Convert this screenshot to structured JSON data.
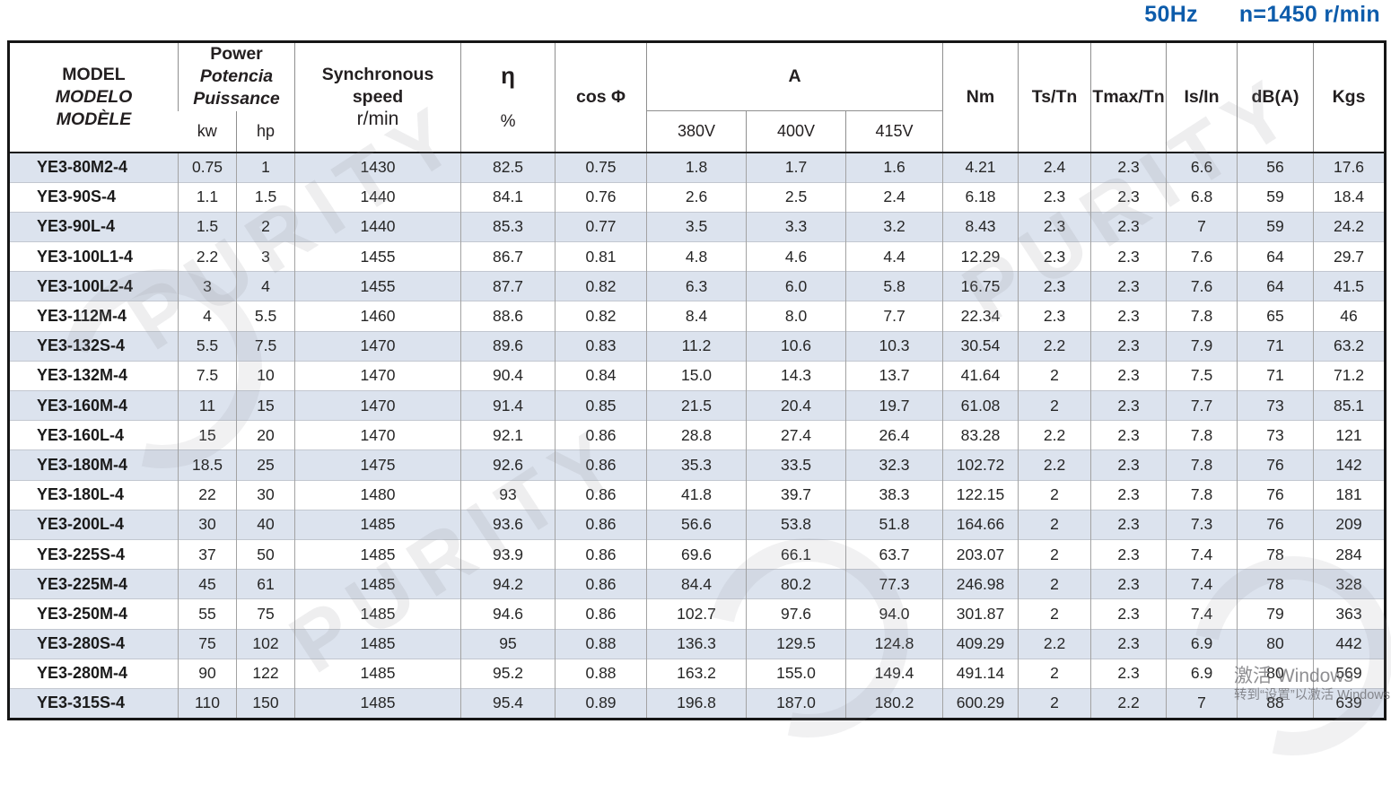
{
  "page_header": {
    "frequency": "50Hz",
    "speed_spec": "n=1450 r/min"
  },
  "table": {
    "header": {
      "model_lines": [
        "MODEL",
        "MODELO",
        "MODÈLE"
      ],
      "power_lines": [
        "Power",
        "Potencia",
        "Puissance"
      ],
      "power_sub": [
        "kw",
        "hp"
      ],
      "speed_lines": [
        "Synchronous",
        "speed",
        "r/min"
      ],
      "eta_symbol": "η",
      "eta_unit": "%",
      "cos_label": "cos Φ",
      "current_label": "A",
      "current_sub": [
        "380V",
        "400V",
        "415V"
      ],
      "simple": [
        "Nm",
        "Ts/Tn",
        "Tmax/Tn",
        "Is/In",
        "dB(A)",
        "Kgs"
      ]
    },
    "rows": [
      {
        "model": "YE3-80M2-4",
        "values": [
          "0.75",
          "1",
          "1430",
          "82.5",
          "0.75",
          "1.8",
          "1.7",
          "1.6",
          "4.21",
          "2.4",
          "2.3",
          "6.6",
          "56",
          "17.6"
        ]
      },
      {
        "model": "YE3-90S-4",
        "values": [
          "1.1",
          "1.5",
          "1440",
          "84.1",
          "0.76",
          "2.6",
          "2.5",
          "2.4",
          "6.18",
          "2.3",
          "2.3",
          "6.8",
          "59",
          "18.4"
        ]
      },
      {
        "model": "YE3-90L-4",
        "values": [
          "1.5",
          "2",
          "1440",
          "85.3",
          "0.77",
          "3.5",
          "3.3",
          "3.2",
          "8.43",
          "2.3",
          "2.3",
          "7",
          "59",
          "24.2"
        ]
      },
      {
        "model": "YE3-100L1-4",
        "values": [
          "2.2",
          "3",
          "1455",
          "86.7",
          "0.81",
          "4.8",
          "4.6",
          "4.4",
          "12.29",
          "2.3",
          "2.3",
          "7.6",
          "64",
          "29.7"
        ]
      },
      {
        "model": "YE3-100L2-4",
        "values": [
          "3",
          "4",
          "1455",
          "87.7",
          "0.82",
          "6.3",
          "6.0",
          "5.8",
          "16.75",
          "2.3",
          "2.3",
          "7.6",
          "64",
          "41.5"
        ]
      },
      {
        "model": "YE3-112M-4",
        "values": [
          "4",
          "5.5",
          "1460",
          "88.6",
          "0.82",
          "8.4",
          "8.0",
          "7.7",
          "22.34",
          "2.3",
          "2.3",
          "7.8",
          "65",
          "46"
        ]
      },
      {
        "model": "YE3-132S-4",
        "values": [
          "5.5",
          "7.5",
          "1470",
          "89.6",
          "0.83",
          "11.2",
          "10.6",
          "10.3",
          "30.54",
          "2.2",
          "2.3",
          "7.9",
          "71",
          "63.2"
        ]
      },
      {
        "model": "YE3-132M-4",
        "values": [
          "7.5",
          "10",
          "1470",
          "90.4",
          "0.84",
          "15.0",
          "14.3",
          "13.7",
          "41.64",
          "2",
          "2.3",
          "7.5",
          "71",
          "71.2"
        ]
      },
      {
        "model": "YE3-160M-4",
        "values": [
          "11",
          "15",
          "1470",
          "91.4",
          "0.85",
          "21.5",
          "20.4",
          "19.7",
          "61.08",
          "2",
          "2.3",
          "7.7",
          "73",
          "85.1"
        ]
      },
      {
        "model": "YE3-160L-4",
        "values": [
          "15",
          "20",
          "1470",
          "92.1",
          "0.86",
          "28.8",
          "27.4",
          "26.4",
          "83.28",
          "2.2",
          "2.3",
          "7.8",
          "73",
          "121"
        ]
      },
      {
        "model": "YE3-180M-4",
        "values": [
          "18.5",
          "25",
          "1475",
          "92.6",
          "0.86",
          "35.3",
          "33.5",
          "32.3",
          "102.72",
          "2.2",
          "2.3",
          "7.8",
          "76",
          "142"
        ]
      },
      {
        "model": "YE3-180L-4",
        "values": [
          "22",
          "30",
          "1480",
          "93",
          "0.86",
          "41.8",
          "39.7",
          "38.3",
          "122.15",
          "2",
          "2.3",
          "7.8",
          "76",
          "181"
        ]
      },
      {
        "model": "YE3-200L-4",
        "values": [
          "30",
          "40",
          "1485",
          "93.6",
          "0.86",
          "56.6",
          "53.8",
          "51.8",
          "164.66",
          "2",
          "2.3",
          "7.3",
          "76",
          "209"
        ]
      },
      {
        "model": "YE3-225S-4",
        "values": [
          "37",
          "50",
          "1485",
          "93.9",
          "0.86",
          "69.6",
          "66.1",
          "63.7",
          "203.07",
          "2",
          "2.3",
          "7.4",
          "78",
          "284"
        ]
      },
      {
        "model": "YE3-225M-4",
        "values": [
          "45",
          "61",
          "1485",
          "94.2",
          "0.86",
          "84.4",
          "80.2",
          "77.3",
          "246.98",
          "2",
          "2.3",
          "7.4",
          "78",
          "328"
        ]
      },
      {
        "model": "YE3-250M-4",
        "values": [
          "55",
          "75",
          "1485",
          "94.6",
          "0.86",
          "102.7",
          "97.6",
          "94.0",
          "301.87",
          "2",
          "2.3",
          "7.4",
          "79",
          "363"
        ]
      },
      {
        "model": "YE3-280S-4",
        "values": [
          "75",
          "102",
          "1485",
          "95",
          "0.88",
          "136.3",
          "129.5",
          "124.8",
          "409.29",
          "2.2",
          "2.3",
          "6.9",
          "80",
          "442"
        ]
      },
      {
        "model": "YE3-280M-4",
        "values": [
          "90",
          "122",
          "1485",
          "95.2",
          "0.88",
          "163.2",
          "155.0",
          "149.4",
          "491.14",
          "2",
          "2.3",
          "6.9",
          "80",
          "569"
        ]
      },
      {
        "model": "YE3-315S-4",
        "values": [
          "110",
          "150",
          "1485",
          "95.4",
          "0.89",
          "196.8",
          "187.0",
          "180.2",
          "600.29",
          "2",
          "2.2",
          "7",
          "88",
          "639"
        ]
      }
    ]
  },
  "watermark": {
    "brand": "PURITY",
    "activate_line1": "激活 Windows",
    "activate_line2": "转到“设置”以激活 Windows"
  }
}
